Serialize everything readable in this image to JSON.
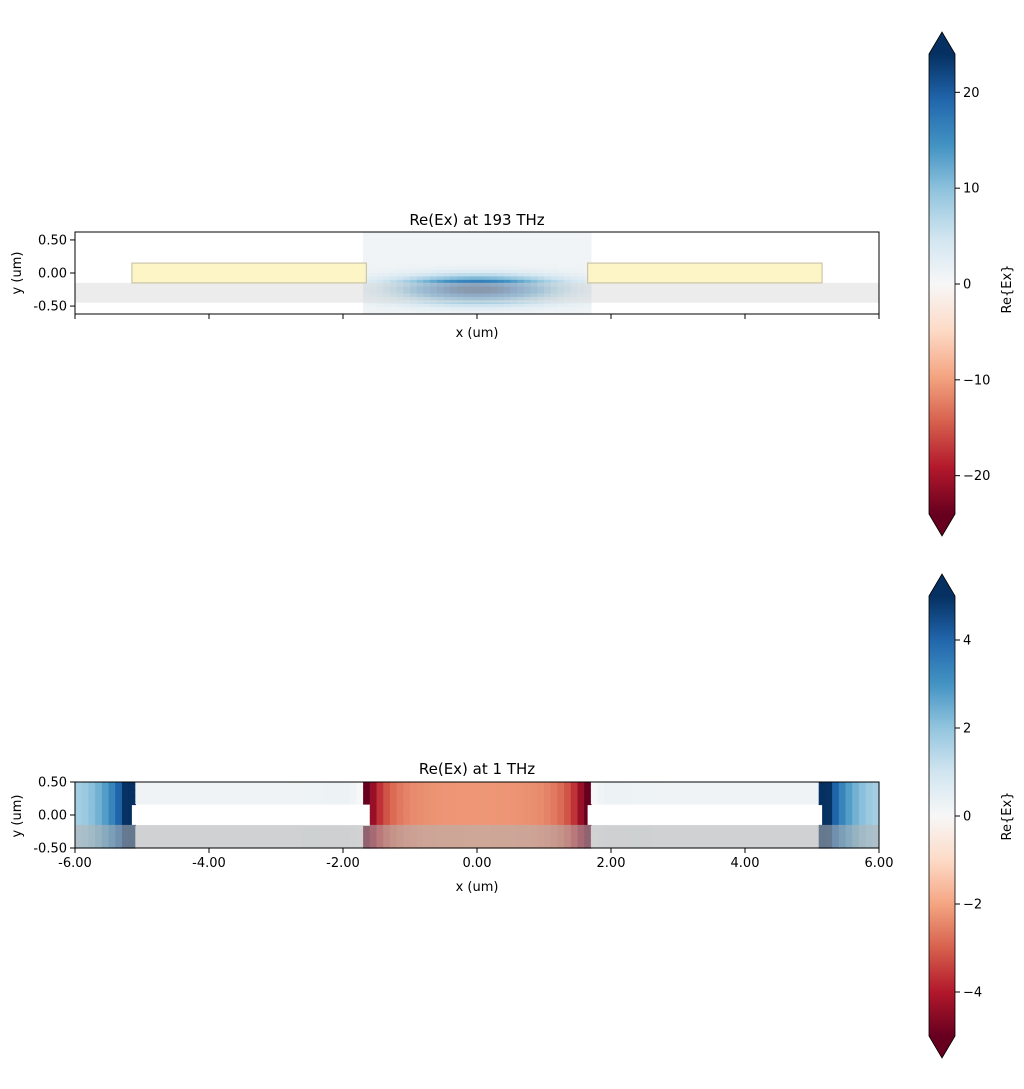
{
  "chart_data": [
    {
      "type": "heatmap",
      "title": "Re(Ex) at 193 THz",
      "xlabel": "x (um)",
      "ylabel": "y (um)",
      "xlim": [
        -6.0,
        6.0
      ],
      "ylim": [
        -0.62,
        0.62
      ],
      "x_ticks": [
        -6,
        -4,
        -2,
        0,
        2,
        4,
        6
      ],
      "x_tick_labels": [],
      "y_ticks": [
        0.5,
        0.0,
        -0.5
      ],
      "y_tick_labels": [
        "0.50",
        "0.00",
        "-0.50"
      ],
      "colorbar": {
        "label": "Re{Ex}",
        "vmin": -24,
        "vmax": 24,
        "ticks": [
          20,
          10,
          0,
          -10,
          -20
        ],
        "tick_labels": [
          "20",
          "10",
          "0",
          "−10",
          "−20"
        ],
        "extend": "both",
        "cmap": "RdBu"
      },
      "field": {
        "computed_x_range": [
          -1.7,
          1.7
        ],
        "peak": {
          "x": 0.0,
          "y": -0.25,
          "value": 24,
          "sx": 0.85,
          "sy": 0.13
        }
      },
      "structures": [
        {
          "name": "substrate",
          "x": [
            -6.0,
            6.0
          ],
          "y": [
            -0.45,
            -0.15
          ],
          "color": "#e0e0e0"
        },
        {
          "name": "electrode-left",
          "x": [
            -5.15,
            -1.65
          ],
          "y": [
            -0.15,
            0.15
          ],
          "color": "#fdf5c4"
        },
        {
          "name": "electrode-right",
          "x": [
            1.65,
            5.15
          ],
          "y": [
            -0.15,
            0.15
          ],
          "color": "#fdf5c4"
        }
      ]
    },
    {
      "type": "heatmap",
      "title": "Re(Ex) at 1 THz",
      "xlabel": "x (um)",
      "ylabel": "y (um)",
      "xlim": [
        -6.0,
        6.0
      ],
      "ylim": [
        -0.5,
        0.5
      ],
      "x_ticks": [
        -6,
        -4,
        -2,
        0,
        2,
        4,
        6
      ],
      "x_tick_labels": [
        "-6.00",
        "-4.00",
        "-2.00",
        "0.00",
        "2.00",
        "4.00",
        "6.00"
      ],
      "y_ticks": [
        0.5,
        0.0,
        -0.5
      ],
      "y_tick_labels": [
        "0.50",
        "0.00",
        "-0.50"
      ],
      "colorbar": {
        "label": "Re{Ex}",
        "vmin": -5,
        "vmax": 5,
        "ticks": [
          4,
          2,
          0,
          -2,
          -4
        ],
        "tick_labels": [
          "4",
          "2",
          "0",
          "−2",
          "−4"
        ],
        "extend": "both",
        "cmap": "RdBu"
      },
      "field": {
        "outer_blue_x": [
          -6.0,
          -5.15,
          5.15,
          6.0
        ],
        "inner_red_x": [
          -1.7,
          1.7
        ],
        "edge_values": [
          {
            "x": -5.2,
            "value": 5
          },
          {
            "x": -1.6,
            "value": -5
          },
          {
            "x": 1.6,
            "value": -5
          },
          {
            "x": 5.2,
            "value": 5
          }
        ],
        "center_value": -2.2
      },
      "structures": [
        {
          "name": "substrate",
          "x": [
            -6.0,
            6.0
          ],
          "y": [
            -0.5,
            -0.15
          ],
          "color": "#b4b4b4"
        },
        {
          "name": "electrode-left",
          "x": [
            -5.15,
            -1.65
          ],
          "y": [
            -0.15,
            0.15
          ],
          "color": "#ffffff"
        },
        {
          "name": "electrode-right",
          "x": [
            1.65,
            5.15
          ],
          "y": [
            -0.15,
            0.15
          ],
          "color": "#ffffff"
        }
      ]
    }
  ]
}
